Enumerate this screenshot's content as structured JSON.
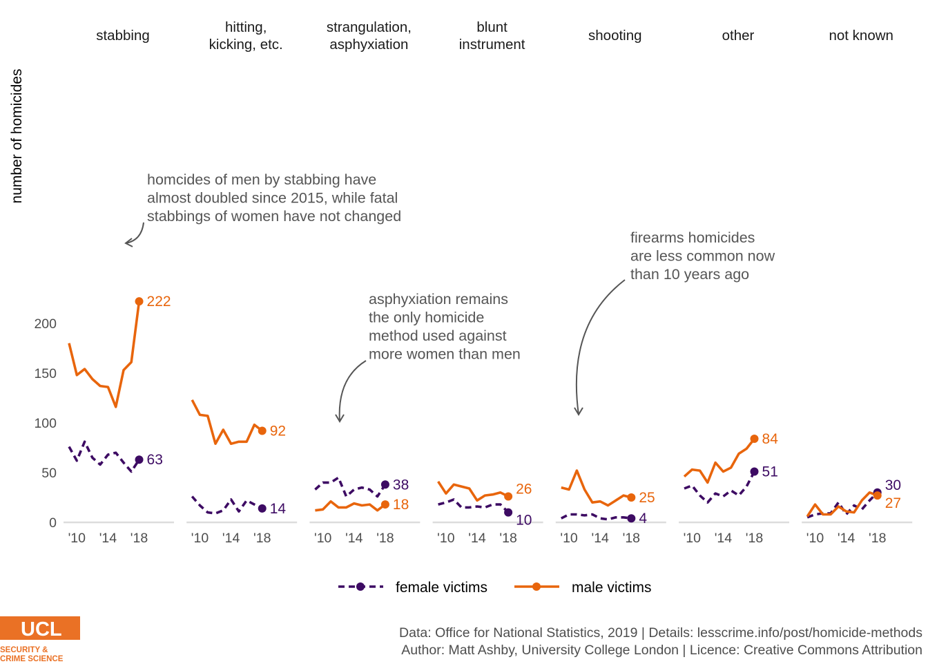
{
  "chart_data": {
    "type": "line",
    "ylabel": "number of homicides",
    "y_ticks": [
      0,
      50,
      100,
      150,
      200
    ],
    "ylim": [
      0,
      230
    ],
    "x_ticks": [
      "'10",
      "'14",
      "'18"
    ],
    "x": [
      2009,
      2010,
      2011,
      2012,
      2013,
      2014,
      2015,
      2016,
      2017,
      2018
    ],
    "legend": {
      "female": "female victims",
      "male": "male victims",
      "placement": "bottom"
    },
    "colors": {
      "female": "#3d0b63",
      "male": "#e8650c",
      "axis": "#dcdcdc",
      "text": "#4d4d4d",
      "annotation": "#555555"
    },
    "panels": [
      {
        "title": [
          "stabbing"
        ],
        "male": [
          180,
          148,
          154,
          144,
          137,
          136,
          116,
          153,
          161,
          222
        ],
        "female": [
          76,
          62,
          81,
          65,
          58,
          68,
          70,
          60,
          51,
          63
        ],
        "labels": {
          "male": "222",
          "female": "63"
        }
      },
      {
        "title": [
          "hitting,",
          "kicking, etc."
        ],
        "male": [
          123,
          108,
          107,
          79,
          93,
          79,
          81,
          81,
          98,
          92
        ],
        "female": [
          26,
          17,
          10,
          9,
          12,
          23,
          11,
          22,
          18,
          14
        ],
        "labels": {
          "male": "92",
          "female": "14"
        }
      },
      {
        "title": [
          "strangulation,",
          "asphyxiation"
        ],
        "male": [
          12,
          13,
          21,
          15,
          15,
          19,
          17,
          18,
          12,
          18
        ],
        "female": [
          33,
          40,
          40,
          45,
          26,
          33,
          35,
          33,
          26,
          38
        ],
        "labels": {
          "male": "18",
          "female": "38"
        }
      },
      {
        "title": [
          "blunt",
          "instrument"
        ],
        "male": [
          41,
          29,
          38,
          36,
          34,
          22,
          27,
          28,
          30,
          26
        ],
        "female": [
          18,
          20,
          23,
          15,
          15,
          16,
          15,
          18,
          18,
          10
        ],
        "labels": {
          "male": "26",
          "female": "10"
        }
      },
      {
        "title": [
          "shooting"
        ],
        "male": [
          35,
          33,
          52,
          33,
          20,
          21,
          17,
          22,
          27,
          25
        ],
        "female": [
          4,
          8,
          8,
          7,
          8,
          4,
          3,
          5,
          5,
          4
        ],
        "labels": {
          "male": "25",
          "female": "4"
        }
      },
      {
        "title": [
          "other"
        ],
        "male": [
          46,
          53,
          52,
          40,
          60,
          51,
          55,
          69,
          74,
          84
        ],
        "female": [
          34,
          37,
          27,
          20,
          29,
          26,
          32,
          27,
          36,
          51
        ],
        "labels": {
          "male": "84",
          "female": "51"
        }
      },
      {
        "title": [
          "not known"
        ],
        "male": [
          6,
          18,
          8,
          8,
          16,
          11,
          10,
          22,
          30,
          27
        ],
        "female": [
          5,
          8,
          9,
          9,
          20,
          8,
          17,
          13,
          22,
          30
        ],
        "labels": {
          "male": "27",
          "female": "30"
        }
      }
    ],
    "annotations": [
      {
        "panel": 0,
        "lines": [
          "homcides of men by stabbing have",
          "almost doubled since 2015, while fatal",
          "stabbings of women have not changed"
        ]
      },
      {
        "panel": 2,
        "lines": [
          "asphyxiation remains",
          "the only homicide",
          "method used against",
          "more women than men"
        ]
      },
      {
        "panel": 4,
        "lines": [
          "firearms homicides",
          "are less common now",
          "than 10 years ago"
        ]
      }
    ]
  },
  "caption": {
    "line1": "Data: Office for National Statistics, 2019 |  Details: lesscrime.info/post/homicide-methods",
    "line2": "Author: Matt Ashby, University College London |  Licence: Creative Commons Attribution"
  },
  "logo": {
    "main": "UCL",
    "sub1": "SECURITY &",
    "sub2": "CRIME SCIENCE"
  }
}
